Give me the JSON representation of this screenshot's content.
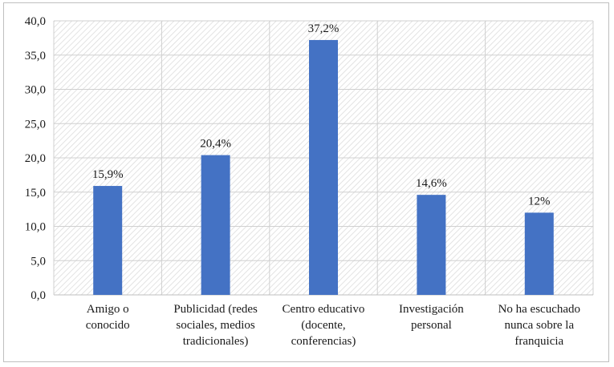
{
  "chart_data": {
    "type": "bar",
    "title": "",
    "xlabel": "",
    "ylabel": "",
    "ylim": [
      0,
      40
    ],
    "yticks": [
      "0,0",
      "5,0",
      "10,0",
      "15,0",
      "20,0",
      "25,0",
      "30,0",
      "35,0",
      "40,0"
    ],
    "grid": true,
    "categories": [
      [
        "Amigo o",
        "conocido"
      ],
      [
        "Publicidad (redes",
        "sociales, medios",
        "tradicionales)"
      ],
      [
        "Centro educativo",
        "(docente,",
        "conferencias)"
      ],
      [
        "Investigación",
        "personal"
      ],
      [
        "No ha escuchado",
        "nunca sobre la",
        "franquicia"
      ]
    ],
    "values": [
      15.9,
      20.4,
      37.2,
      14.6,
      12
    ],
    "data_labels": [
      "15,9%",
      "20,4%",
      "37,2%",
      "14,6%",
      "12%"
    ],
    "bar_color": "#4472c4"
  }
}
